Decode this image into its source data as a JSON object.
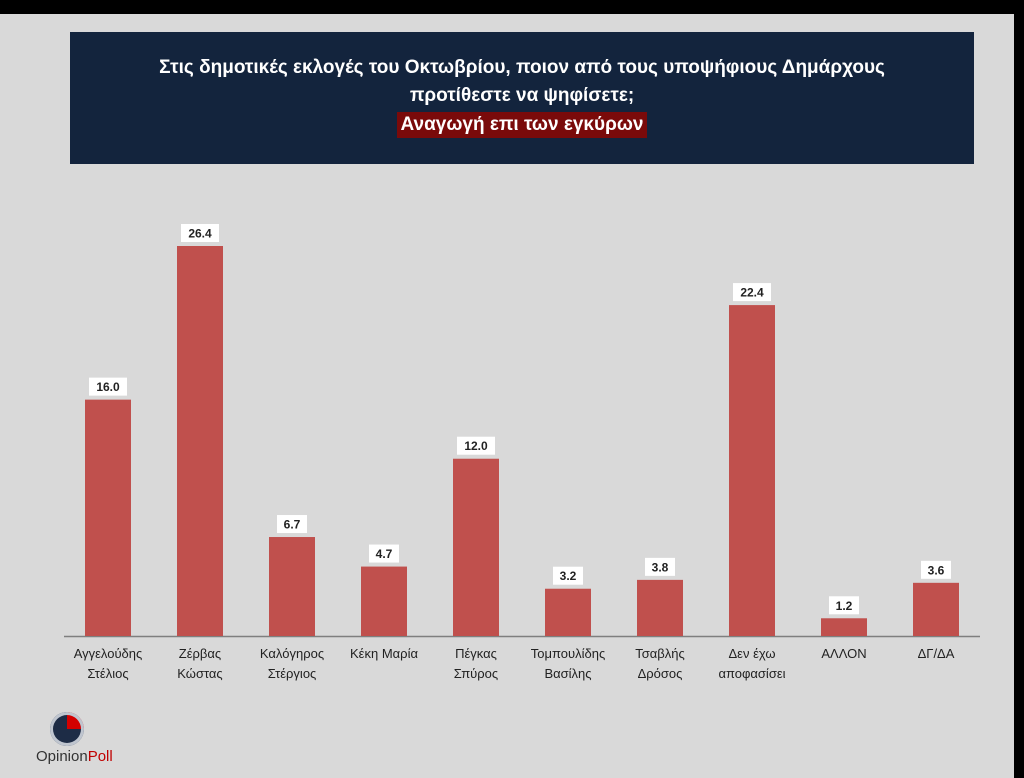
{
  "header": {
    "question_line1": "Στις δημοτικές εκλογές του Οκτωβρίου, ποιον από τους υποψήφιους Δημάρχους",
    "question_line2": "προτίθεστε να ψηφίσετε;",
    "subtitle": "Αναγωγή επι των εγκύρων"
  },
  "logo": {
    "part1": "Opinion",
    "part2": "Poll"
  },
  "colors": {
    "bar": "#c0504d",
    "header_bg": "#13243d",
    "subtitle_bg": "#7a0a0a"
  },
  "chart_data": {
    "type": "bar",
    "title": "Στις δημοτικές εκλογές του Οκτωβρίου, ποιον από τους υποψήφιους Δημάρχους προτίθεστε να ψηφίσετε;",
    "subtitle": "Αναγωγή επι των εγκύρων",
    "categories": [
      [
        "Αγγελούδης",
        "Στέλιος"
      ],
      [
        "Ζέρβας",
        "Κώστας"
      ],
      [
        "Καλόγηρος",
        "Στέργιος"
      ],
      [
        "Κέκη Μαρία"
      ],
      [
        "Πέγκας",
        "Σπύρος"
      ],
      [
        "Τομπουλίδης",
        "Βασίλης"
      ],
      [
        "Τσαβλής",
        "Δρόσος"
      ],
      [
        "Δεν έχω",
        "αποφασίσει"
      ],
      [
        "ΑΛΛΟΝ"
      ],
      [
        "ΔΓ/ΔΑ"
      ]
    ],
    "values": [
      16.0,
      26.4,
      6.7,
      4.7,
      12.0,
      3.2,
      3.8,
      22.4,
      1.2,
      3.6
    ],
    "value_labels": [
      "16.0",
      "26.4",
      "6.7",
      "4.7",
      "12.0",
      "3.2",
      "3.8",
      "22.4",
      "1.2",
      "3.6"
    ],
    "ylim": [
      0,
      26.4
    ],
    "grid": false,
    "legend": "none"
  }
}
